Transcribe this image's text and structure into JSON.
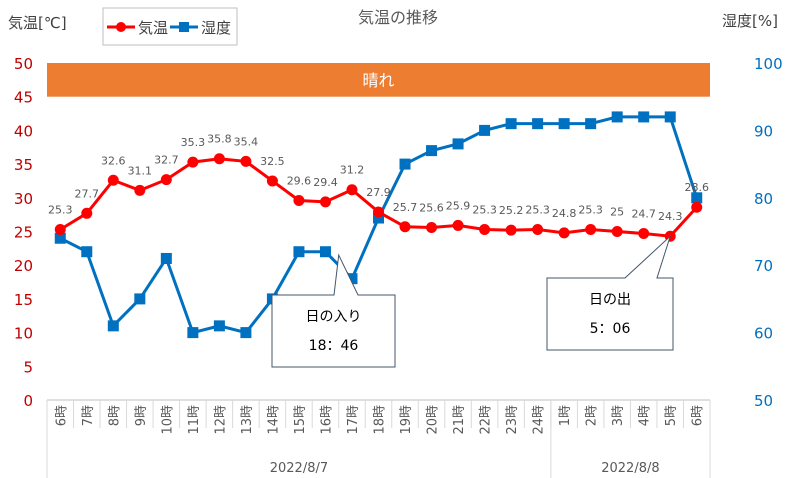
{
  "chart_data": {
    "type": "line",
    "title": "気温の推移",
    "y_left_label": "気温[℃]",
    "y_right_label": "湿度[%]",
    "y_left_ticks": [
      "0",
      "5",
      "10",
      "15",
      "20",
      "25",
      "30",
      "35",
      "40",
      "45",
      "50"
    ],
    "y_right_ticks": [
      "50",
      "60",
      "70",
      "80",
      "90",
      "100"
    ],
    "y_left_range": [
      0,
      50
    ],
    "y_right_range": [
      50,
      100
    ],
    "categories": [
      "6時",
      "7時",
      "8時",
      "9時",
      "10時",
      "11時",
      "12時",
      "13時",
      "14時",
      "15時",
      "16時",
      "17時",
      "18時",
      "19時",
      "20時",
      "21時",
      "22時",
      "23時",
      "24時",
      "1時",
      "2時",
      "3時",
      "4時",
      "5時",
      "6時"
    ],
    "date_groups": [
      {
        "label": "2022/8/7",
        "from": 0,
        "to": 18
      },
      {
        "label": "2022/8/8",
        "from": 19,
        "to": 24
      }
    ],
    "weather_band": {
      "label": "晴れ",
      "color": "#ed7d31",
      "from": 45,
      "to": 50
    },
    "series": [
      {
        "name": "気温",
        "axis": "left",
        "color": "#ff0000",
        "marker": "circle",
        "values": [
          25.3,
          27.7,
          32.6,
          31.1,
          32.7,
          35.3,
          35.8,
          35.4,
          32.5,
          29.6,
          29.4,
          31.2,
          27.9,
          25.7,
          25.6,
          25.9,
          25.3,
          25.2,
          25.3,
          24.8,
          25.3,
          25.0,
          24.7,
          24.3,
          28.6
        ],
        "labels": [
          "25.3",
          "27.7",
          "32.6",
          "31.1",
          "32.7",
          "35.3",
          "35.8",
          "35.4",
          "32.5",
          "29.6",
          "29.4",
          "31.2",
          "27.9",
          "25.7",
          "25.6",
          "25.9",
          "25.3",
          "25.2",
          "25.3",
          "24.8",
          "25.3",
          "25",
          "24.7",
          "24.3",
          "28.6"
        ]
      },
      {
        "name": "湿度",
        "axis": "right",
        "color": "#0070c0",
        "marker": "square",
        "values": [
          74,
          72,
          61,
          65,
          71,
          60,
          61,
          60,
          65,
          72,
          72,
          68,
          77,
          85,
          87,
          88,
          90,
          91,
          91,
          91,
          91,
          92,
          92,
          92,
          80
        ]
      }
    ],
    "annotations": [
      {
        "title": "日の入り",
        "time": "18：46",
        "anchor_index": 10.5
      },
      {
        "title": "日の出",
        "time": "5：06",
        "anchor_index": 23.0
      }
    ]
  }
}
